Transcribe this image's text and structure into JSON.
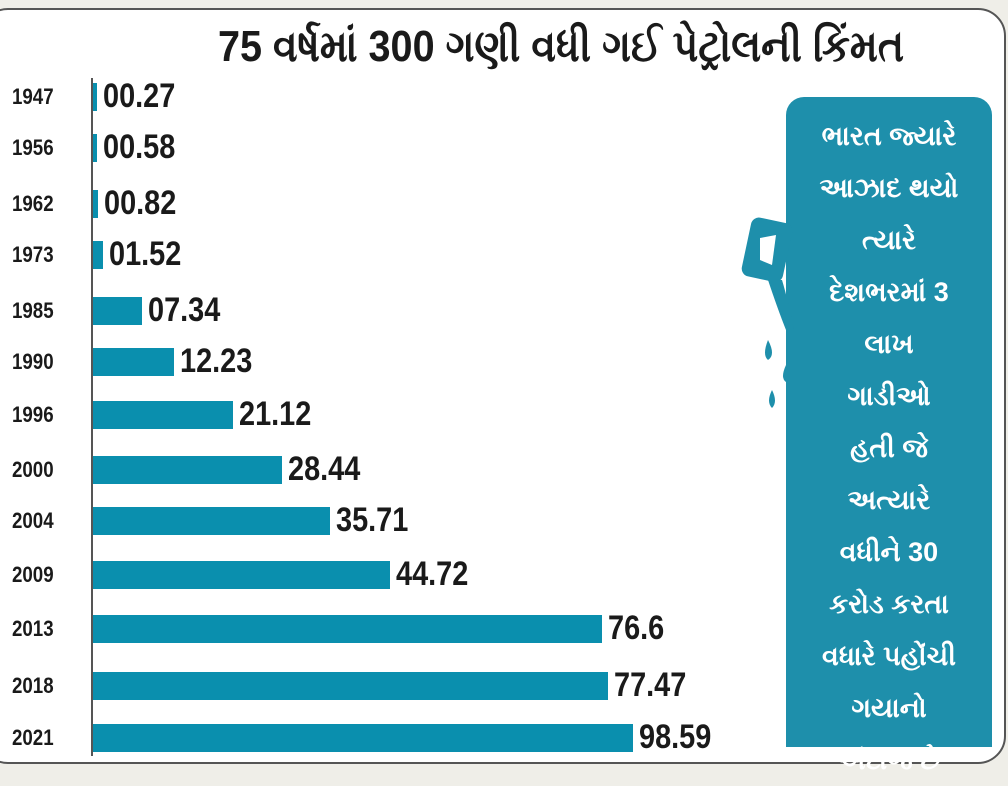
{
  "title": "75 વર્ષમાં 300 ગણી વધી ગઈ પેટ્રોલની કિંમત",
  "colors": {
    "bar": "#0a8fae",
    "panel": "#1e8fab",
    "text": "#1a1a1a"
  },
  "side_panel": {
    "icon": "fuel-nozzle-icon",
    "lines": [
      "ભારત જ્યારે",
      "આઝાદ થયો",
      "ત્યારે",
      "દેશભરમાં 3",
      "લાખ",
      "ગાડીઓ",
      "હતી જે",
      "અત્યારે",
      "વધીને 30",
      "કરોડ કરતા",
      "વધારે પહોંચી",
      "ગયાનો",
      "અંદાજ છે"
    ]
  },
  "chart_data": {
    "type": "bar",
    "orientation": "horizontal",
    "title": "75 વર્ષમાં 300 ગણી વધી ગઈ પેટ્રોલની કિંમત",
    "categories": [
      "1947",
      "1956",
      "1962",
      "1973",
      "1985",
      "1990",
      "1996",
      "2000",
      "2004",
      "2009",
      "2013",
      "2018",
      "2021"
    ],
    "values": [
      0.27,
      0.58,
      0.82,
      1.52,
      7.34,
      12.23,
      21.12,
      28.44,
      35.71,
      44.72,
      76.6,
      77.47,
      98.59
    ],
    "value_labels": [
      "00.27",
      "00.58",
      "00.82",
      "01.52",
      "07.34",
      "12.23",
      "21.12",
      "28.44",
      "35.71",
      "44.72",
      "76.6",
      "77.47",
      "98.59"
    ],
    "grid": false
  }
}
